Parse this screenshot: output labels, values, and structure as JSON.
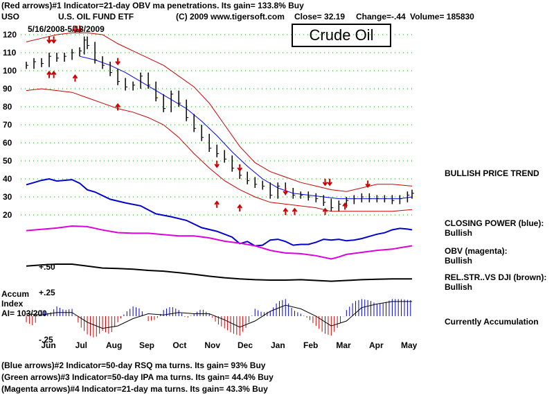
{
  "header": {
    "line1": "(Red arrows)#1 Indicator=21-day OBV ma penetrations. Its gain= 133.8% Buy",
    "ticker": "USO",
    "fund_name": "U.S. OIL FUND ETF",
    "copyright": "(C) 2009 www.tigersoft.com",
    "close": "Close=  32.19",
    "change": "Change=-.44",
    "volume": "Volume= 185830",
    "date_range": "5/16/2008-5/18/2009",
    "crude_box": "Crude Oil"
  },
  "side_labels": {
    "trend": "BULLISH PRICE TREND",
    "cp_title": "CLOSING POWER (blue):",
    "cp_value": "Bullish",
    "obv_title": "OBV (magenta):",
    "obv_value": "Bullish",
    "rel_title": "REL.STR..VS DJI (brown):",
    "rel_value": "Bullish",
    "accum_state": "Currently Accumulation"
  },
  "accum_labels": {
    "title": "Accum",
    "index": "Index",
    "ai": "AI= 103/200",
    "plus25": "+.25",
    "minus25": "-.25",
    "plus50": "+.50"
  },
  "footer": {
    "line1": "(Blue arrows)#2 Indicator=50-day RSQ ma turns. Its gain= 93% Buy",
    "line2": "(Green arrows)#3 Indicator=50-day IPA ma turns. Its gain= 44.4% Buy",
    "line3": "(Magenta arrows)#4 Indicator=21-day ma turns. Its gain= 43.3% Buy"
  },
  "colors": {
    "price": "#000000",
    "bands": "#cc0000",
    "ma50": "#0000ff",
    "closing_power": "#0000cc",
    "obv": "#dd00dd",
    "rel_str": "#000000",
    "grid": "#00aa00",
    "accum_pos": "#0000cc",
    "accum_neg": "#cc0000",
    "arrows": "#cc0000"
  },
  "chart_data": {
    "type": "line",
    "y_ticks": [
      120,
      110,
      100,
      90,
      80,
      70,
      60,
      50,
      40,
      30,
      20
    ],
    "ylim": [
      20,
      120
    ],
    "month_labels": [
      "Jun",
      "Jul",
      "Aug",
      "Sep",
      "Oct",
      "Nov",
      "Dec",
      "Jan",
      "Feb",
      "Mar",
      "Apr",
      "May"
    ],
    "price": [
      [
        0,
        103
      ],
      [
        5,
        105
      ],
      [
        10,
        104
      ],
      [
        15,
        108
      ],
      [
        20,
        107
      ],
      [
        25,
        108
      ],
      [
        30,
        110
      ],
      [
        35,
        111
      ],
      [
        38,
        117
      ],
      [
        40,
        114
      ],
      [
        45,
        106
      ],
      [
        50,
        103
      ],
      [
        55,
        99
      ],
      [
        60,
        94
      ],
      [
        65,
        91
      ],
      [
        70,
        92
      ],
      [
        75,
        97
      ],
      [
        80,
        92
      ],
      [
        85,
        85
      ],
      [
        90,
        79
      ],
      [
        95,
        87
      ],
      [
        100,
        82
      ],
      [
        105,
        74
      ],
      [
        110,
        68
      ],
      [
        115,
        63
      ],
      [
        120,
        57
      ],
      [
        125,
        54
      ],
      [
        130,
        51
      ],
      [
        135,
        46
      ],
      [
        140,
        42
      ],
      [
        145,
        39
      ],
      [
        150,
        37
      ],
      [
        155,
        36
      ],
      [
        160,
        31
      ],
      [
        165,
        36
      ],
      [
        170,
        33
      ],
      [
        175,
        31
      ],
      [
        180,
        31
      ],
      [
        185,
        30
      ],
      [
        190,
        29
      ],
      [
        195,
        27
      ],
      [
        200,
        24
      ],
      [
        205,
        26
      ],
      [
        210,
        28
      ],
      [
        215,
        29
      ],
      [
        220,
        30
      ],
      [
        225,
        29
      ],
      [
        230,
        29
      ],
      [
        235,
        29
      ],
      [
        240,
        28
      ],
      [
        245,
        29
      ],
      [
        250,
        31
      ],
      [
        253,
        32
      ]
    ],
    "upper_band": [
      [
        0,
        116
      ],
      [
        10,
        118
      ],
      [
        20,
        120
      ],
      [
        30,
        121
      ],
      [
        40,
        121
      ],
      [
        50,
        120
      ],
      [
        60,
        115
      ],
      [
        70,
        111
      ],
      [
        80,
        107
      ],
      [
        90,
        103
      ],
      [
        100,
        97
      ],
      [
        110,
        91
      ],
      [
        120,
        82
      ],
      [
        130,
        70
      ],
      [
        140,
        58
      ],
      [
        150,
        49
      ],
      [
        160,
        44
      ],
      [
        170,
        41
      ],
      [
        180,
        38
      ],
      [
        190,
        36
      ],
      [
        200,
        34
      ],
      [
        210,
        33
      ],
      [
        220,
        35
      ],
      [
        230,
        37
      ],
      [
        240,
        37
      ],
      [
        253,
        36
      ]
    ],
    "lower_band": [
      [
        0,
        89
      ],
      [
        10,
        90
      ],
      [
        20,
        89
      ],
      [
        30,
        88
      ],
      [
        40,
        85
      ],
      [
        50,
        82
      ],
      [
        60,
        79
      ],
      [
        70,
        77
      ],
      [
        80,
        74
      ],
      [
        90,
        70
      ],
      [
        100,
        63
      ],
      [
        110,
        54
      ],
      [
        120,
        46
      ],
      [
        130,
        39
      ],
      [
        140,
        34
      ],
      [
        150,
        30
      ],
      [
        160,
        27
      ],
      [
        170,
        26
      ],
      [
        180,
        25
      ],
      [
        190,
        24
      ],
      [
        200,
        22
      ],
      [
        210,
        22
      ],
      [
        220,
        22
      ],
      [
        230,
        22
      ],
      [
        240,
        22
      ],
      [
        253,
        23
      ]
    ],
    "ma50": [
      [
        35,
        108
      ],
      [
        45,
        106
      ],
      [
        55,
        103
      ],
      [
        65,
        99
      ],
      [
        75,
        94
      ],
      [
        85,
        89
      ],
      [
        95,
        84
      ],
      [
        105,
        79
      ],
      [
        115,
        72
      ],
      [
        125,
        64
      ],
      [
        135,
        55
      ],
      [
        145,
        47
      ],
      [
        155,
        40
      ],
      [
        165,
        35
      ],
      [
        175,
        32
      ],
      [
        185,
        31
      ],
      [
        195,
        30
      ],
      [
        205,
        29
      ],
      [
        215,
        29
      ],
      [
        225,
        29
      ],
      [
        235,
        29
      ],
      [
        245,
        29
      ],
      [
        253,
        30
      ]
    ],
    "upper_markers": [
      [
        15,
        116
      ],
      [
        18,
        116
      ],
      [
        32,
        122
      ],
      [
        35,
        122
      ],
      [
        60,
        104
      ],
      [
        125,
        47
      ],
      [
        140,
        45
      ],
      [
        170,
        32
      ],
      [
        196,
        37
      ],
      [
        199,
        37
      ],
      [
        224,
        36
      ]
    ],
    "lower_markers": [
      [
        15,
        99
      ],
      [
        18,
        99
      ],
      [
        32,
        97
      ],
      [
        60,
        81
      ],
      [
        125,
        27
      ],
      [
        140,
        25
      ],
      [
        170,
        23
      ],
      [
        176,
        23
      ],
      [
        196,
        23
      ],
      [
        209,
        26
      ]
    ],
    "closing_power": [
      [
        0,
        0.2
      ],
      [
        5,
        0.5
      ],
      [
        10,
        0.8
      ],
      [
        15,
        1.0
      ],
      [
        20,
        0.7
      ],
      [
        25,
        0.8
      ],
      [
        30,
        0.9
      ],
      [
        35,
        0.4
      ],
      [
        40,
        -0.5
      ],
      [
        45,
        -0.8
      ],
      [
        55,
        -1.8
      ],
      [
        65,
        -2.3
      ],
      [
        75,
        -2.7
      ],
      [
        85,
        -3.8
      ],
      [
        95,
        -4.2
      ],
      [
        105,
        -4.7
      ],
      [
        115,
        -5.7
      ],
      [
        125,
        -6.2
      ],
      [
        135,
        -7.0
      ],
      [
        140,
        -7.9
      ],
      [
        145,
        -7.6
      ],
      [
        150,
        -8.2
      ],
      [
        155,
        -8.1
      ],
      [
        160,
        -7.4
      ],
      [
        165,
        -7.3
      ],
      [
        170,
        -7.6
      ],
      [
        175,
        -8.1
      ],
      [
        180,
        -8.0
      ],
      [
        185,
        -8.0
      ],
      [
        190,
        -7.7
      ],
      [
        195,
        -7.3
      ],
      [
        200,
        -7.4
      ],
      [
        205,
        -7.3
      ],
      [
        210,
        -7.5
      ],
      [
        215,
        -7.4
      ],
      [
        220,
        -7.2
      ],
      [
        225,
        -6.9
      ],
      [
        230,
        -6.6
      ],
      [
        235,
        -6.4
      ],
      [
        240,
        -6.0
      ],
      [
        245,
        -5.8
      ],
      [
        250,
        -5.9
      ],
      [
        253,
        -6.0
      ]
    ],
    "obv": [
      [
        0,
        0.0
      ],
      [
        10,
        0.2
      ],
      [
        20,
        0.4
      ],
      [
        30,
        0.7
      ],
      [
        40,
        0.6
      ],
      [
        50,
        0.1
      ],
      [
        60,
        -0.3
      ],
      [
        70,
        -0.4
      ],
      [
        80,
        -0.4
      ],
      [
        90,
        -0.6
      ],
      [
        100,
        -0.8
      ],
      [
        110,
        -0.8
      ],
      [
        120,
        -1.1
      ],
      [
        130,
        -1.6
      ],
      [
        140,
        -1.9
      ],
      [
        150,
        -2.3
      ],
      [
        160,
        -3.0
      ],
      [
        165,
        -3.2
      ],
      [
        170,
        -3.4
      ],
      [
        180,
        -3.5
      ],
      [
        190,
        -3.8
      ],
      [
        200,
        -4.3
      ],
      [
        205,
        -4.0
      ],
      [
        210,
        -3.6
      ],
      [
        220,
        -3.3
      ],
      [
        230,
        -3.0
      ],
      [
        240,
        -2.8
      ],
      [
        245,
        -2.6
      ],
      [
        253,
        -2.3
      ]
    ],
    "rel_str": [
      [
        0,
        0.0
      ],
      [
        10,
        0.3
      ],
      [
        20,
        0.5
      ],
      [
        30,
        0.5
      ],
      [
        40,
        0.0
      ],
      [
        50,
        -0.5
      ],
      [
        60,
        -0.6
      ],
      [
        70,
        -0.8
      ],
      [
        80,
        -1.1
      ],
      [
        90,
        -1.3
      ],
      [
        100,
        -1.7
      ],
      [
        110,
        -2.1
      ],
      [
        120,
        -2.6
      ],
      [
        130,
        -3.0
      ],
      [
        140,
        -3.3
      ],
      [
        150,
        -3.5
      ],
      [
        160,
        -3.6
      ],
      [
        170,
        -3.6
      ],
      [
        180,
        -3.5
      ],
      [
        190,
        -3.7
      ],
      [
        200,
        -3.9
      ],
      [
        210,
        -3.7
      ],
      [
        220,
        -3.5
      ],
      [
        230,
        -3.4
      ],
      [
        240,
        -3.3
      ],
      [
        253,
        -3.3
      ]
    ],
    "accum": [
      [
        0,
        -0.05
      ],
      [
        5,
        -0.08
      ],
      [
        10,
        0.05
      ],
      [
        15,
        0.02
      ],
      [
        20,
        0.08
      ],
      [
        25,
        0.05
      ],
      [
        30,
        0.06
      ],
      [
        35,
        -0.08
      ],
      [
        40,
        -0.15
      ],
      [
        45,
        -0.18
      ],
      [
        50,
        -0.12
      ],
      [
        55,
        -0.15
      ],
      [
        60,
        -0.05
      ],
      [
        65,
        0.03
      ],
      [
        70,
        0.08
      ],
      [
        75,
        0.06
      ],
      [
        80,
        -0.04
      ],
      [
        85,
        -0.03
      ],
      [
        90,
        0.05
      ],
      [
        95,
        0.08
      ],
      [
        100,
        0.05
      ],
      [
        105,
        -0.02
      ],
      [
        110,
        0.02
      ],
      [
        115,
        0.06
      ],
      [
        120,
        0.02
      ],
      [
        125,
        -0.06
      ],
      [
        130,
        -0.1
      ],
      [
        135,
        -0.14
      ],
      [
        140,
        -0.16
      ],
      [
        145,
        -0.08
      ],
      [
        150,
        0.06
      ],
      [
        155,
        0.03
      ],
      [
        160,
        0.04
      ],
      [
        165,
        0.12
      ],
      [
        170,
        0.14
      ],
      [
        175,
        0.05
      ],
      [
        180,
        0.02
      ],
      [
        185,
        -0.02
      ],
      [
        190,
        -0.08
      ],
      [
        195,
        -0.14
      ],
      [
        200,
        -0.16
      ],
      [
        205,
        -0.08
      ],
      [
        210,
        0.05
      ],
      [
        215,
        0.12
      ],
      [
        220,
        0.14
      ],
      [
        225,
        0.13
      ],
      [
        230,
        0.1
      ],
      [
        235,
        0.11
      ],
      [
        240,
        0.14
      ],
      [
        245,
        0.14
      ],
      [
        253,
        0.13
      ]
    ],
    "accum_ma": [
      [
        0,
        0.02
      ],
      [
        10,
        0.01
      ],
      [
        20,
        0.03
      ],
      [
        30,
        0.03
      ],
      [
        40,
        -0.05
      ],
      [
        50,
        -0.1
      ],
      [
        60,
        -0.08
      ],
      [
        70,
        -0.02
      ],
      [
        80,
        0.02
      ],
      [
        90,
        0.01
      ],
      [
        100,
        0.03
      ],
      [
        110,
        0.02
      ],
      [
        120,
        0.02
      ],
      [
        130,
        -0.03
      ],
      [
        140,
        -0.09
      ],
      [
        150,
        -0.04
      ],
      [
        160,
        0.04
      ],
      [
        170,
        0.09
      ],
      [
        180,
        0.06
      ],
      [
        190,
        0.0
      ],
      [
        200,
        -0.08
      ],
      [
        210,
        -0.04
      ],
      [
        220,
        0.07
      ],
      [
        230,
        0.1
      ],
      [
        240,
        0.12
      ],
      [
        253,
        0.12
      ]
    ]
  }
}
